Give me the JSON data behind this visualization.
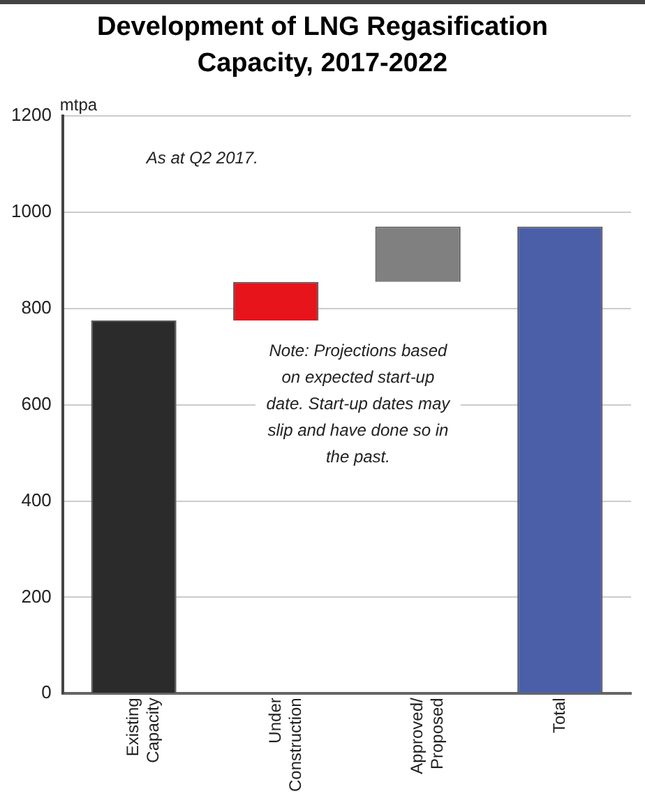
{
  "chart_data": {
    "type": "bar",
    "title": "Development of LNG Regasification Capacity, 2017-2022",
    "ylabel": "mtpa",
    "categories": [
      "Existing Capacity",
      "Under Construction",
      "Approved/ Proposed",
      "Total"
    ],
    "values": [
      775,
      80,
      115,
      970
    ],
    "base": [
      0,
      775,
      855,
      0
    ],
    "colors": [
      "#2b2b2b",
      "#e8141b",
      "#808080",
      "#4a5fa8"
    ],
    "ylim": [
      0,
      1200
    ],
    "yticks": [
      0,
      200,
      400,
      600,
      800,
      1000,
      1200
    ],
    "grid": "y",
    "annotations": [
      "As at Q2 2017.",
      "Note: Projections based on expected start-up date. Start-up dates may slip and have done so in the past."
    ]
  }
}
